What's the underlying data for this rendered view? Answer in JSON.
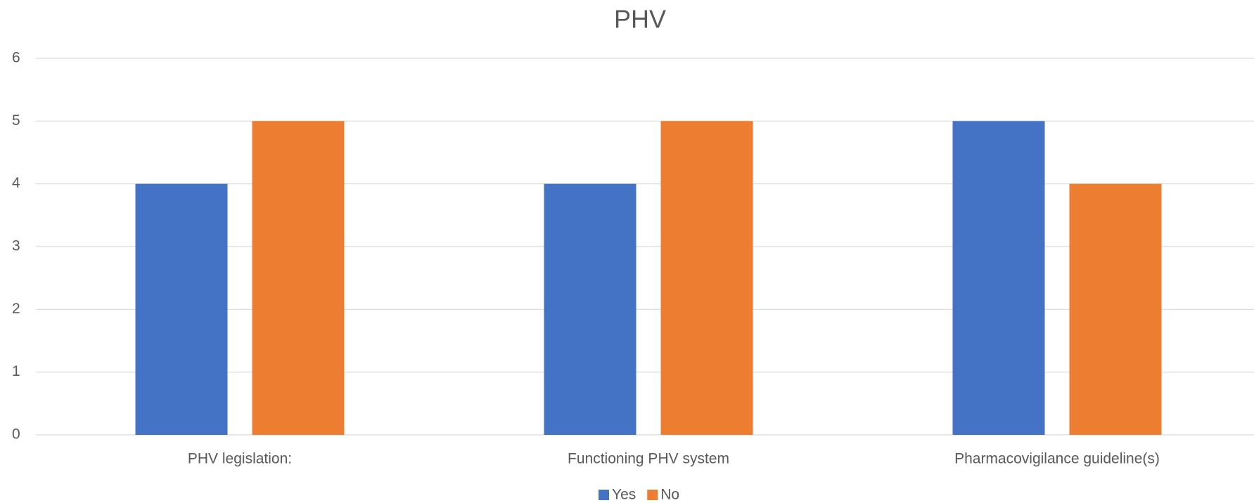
{
  "chart_data": {
    "type": "bar",
    "title": "PHV",
    "categories": [
      "PHV legislation:",
      "Functioning PHV system",
      "Pharmacovigilance guideline(s)"
    ],
    "series": [
      {
        "name": "Yes",
        "color": "#4472c4",
        "values": [
          4,
          4,
          5
        ]
      },
      {
        "name": "No",
        "color": "#ed7d31",
        "values": [
          5,
          5,
          4
        ]
      }
    ],
    "ylim": [
      0,
      6
    ],
    "yticks": [
      0,
      1,
      2,
      3,
      4,
      5,
      6
    ],
    "grid": true,
    "legend": "bottom"
  }
}
